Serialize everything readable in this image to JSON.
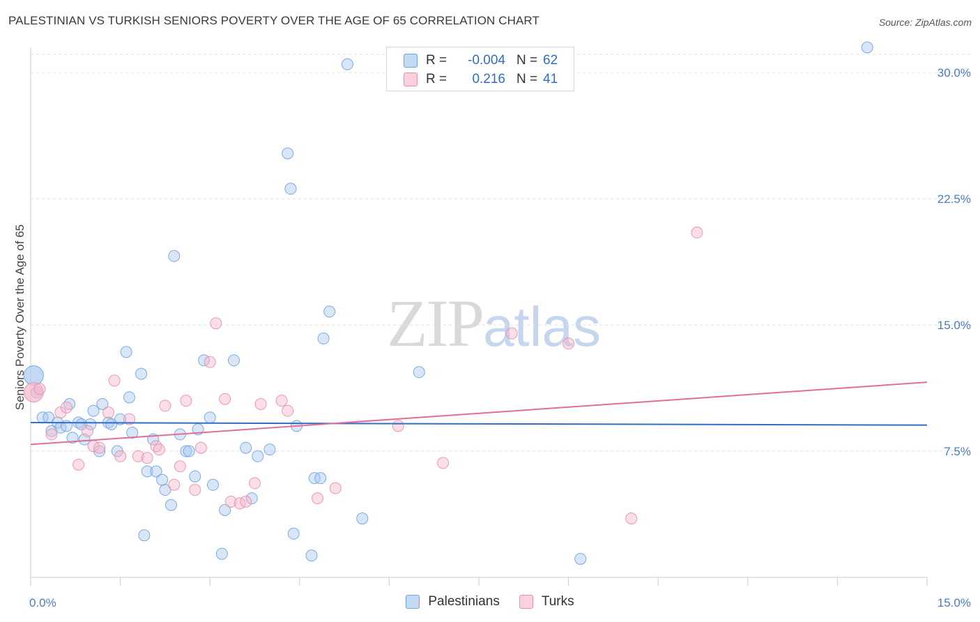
{
  "header": {
    "title": "PALESTINIAN VS TURKISH SENIORS POVERTY OVER THE AGE OF 65 CORRELATION CHART",
    "source": "Source: ZipAtlas.com"
  },
  "watermark": {
    "zip": "ZIP",
    "atlas": "atlas"
  },
  "legend_top": [
    {
      "r_label": "R =",
      "r_value": "-0.004",
      "n_label": "N =",
      "n_value": "62",
      "color": "#a9c8ef"
    },
    {
      "r_label": "R =",
      "r_value": "0.216",
      "n_label": "N =",
      "n_value": "41",
      "color": "#f7b6ca"
    }
  ],
  "legend_bottom": [
    {
      "label": "Palestinians",
      "color": "#a9c8ef"
    },
    {
      "label": "Turks",
      "color": "#f7b6ca"
    }
  ],
  "chart_data": {
    "type": "scatter",
    "title": "PALESTINIAN VS TURKISH SENIORS POVERTY OVER THE AGE OF 65 CORRELATION CHART",
    "xlabel": "",
    "ylabel": "Seniors Poverty Over the Age of 65",
    "xlim": [
      0,
      15
    ],
    "ylim": [
      0,
      31.5
    ],
    "x_tick_labels": [
      "0.0%",
      "15.0%"
    ],
    "y_ticks": [
      7.5,
      15.0,
      22.5,
      30.0
    ],
    "y_tick_labels": [
      "7.5%",
      "15.0%",
      "22.5%",
      "30.0%"
    ],
    "grid": "horizontal dashed",
    "legend_position": "top-center",
    "series": [
      {
        "name": "Palestinians",
        "color": "#6fa3e0",
        "fill": "#a9c8ef",
        "trend": {
          "x": [
            0,
            15
          ],
          "y": [
            9.2,
            9.05
          ],
          "color": "#2f6dc8"
        },
        "points": [
          [
            0.05,
            12.0
          ],
          [
            0.1,
            11.0
          ],
          [
            0.2,
            9.5
          ],
          [
            0.3,
            9.5
          ],
          [
            0.35,
            8.7
          ],
          [
            0.45,
            9.2
          ],
          [
            0.5,
            8.9
          ],
          [
            0.6,
            9.0
          ],
          [
            0.65,
            10.3
          ],
          [
            0.7,
            8.3
          ],
          [
            0.8,
            9.2
          ],
          [
            0.85,
            9.1
          ],
          [
            0.9,
            8.2
          ],
          [
            1.0,
            9.1
          ],
          [
            1.05,
            9.9
          ],
          [
            1.15,
            7.5
          ],
          [
            1.2,
            10.3
          ],
          [
            1.3,
            9.2
          ],
          [
            1.35,
            9.1
          ],
          [
            1.45,
            7.5
          ],
          [
            1.5,
            9.4
          ],
          [
            1.6,
            13.4
          ],
          [
            1.65,
            10.7
          ],
          [
            1.7,
            8.6
          ],
          [
            1.85,
            12.1
          ],
          [
            1.9,
            2.5
          ],
          [
            1.95,
            6.3
          ],
          [
            2.05,
            8.2
          ],
          [
            2.1,
            6.3
          ],
          [
            2.2,
            5.8
          ],
          [
            2.25,
            5.2
          ],
          [
            2.35,
            4.3
          ],
          [
            2.4,
            19.1
          ],
          [
            2.5,
            8.5
          ],
          [
            2.6,
            7.5
          ],
          [
            2.65,
            7.5
          ],
          [
            2.75,
            6.0
          ],
          [
            2.8,
            8.8
          ],
          [
            2.9,
            12.9
          ],
          [
            3.0,
            9.5
          ],
          [
            3.05,
            5.5
          ],
          [
            3.2,
            1.4
          ],
          [
            3.25,
            4.0
          ],
          [
            3.4,
            12.9
          ],
          [
            3.6,
            7.7
          ],
          [
            3.7,
            4.7
          ],
          [
            3.8,
            7.2
          ],
          [
            4.0,
            7.6
          ],
          [
            4.3,
            25.2
          ],
          [
            4.35,
            23.1
          ],
          [
            4.4,
            2.6
          ],
          [
            4.45,
            9.0
          ],
          [
            4.7,
            1.3
          ],
          [
            4.75,
            5.9
          ],
          [
            4.85,
            5.9
          ],
          [
            4.9,
            14.2
          ],
          [
            5.0,
            15.8
          ],
          [
            5.3,
            30.5
          ],
          [
            5.55,
            3.5
          ],
          [
            6.5,
            12.2
          ],
          [
            9.2,
            1.1
          ],
          [
            14.0,
            31.5
          ]
        ]
      },
      {
        "name": "Turks",
        "color": "#e98fab",
        "fill": "#f7b6ca",
        "trend": {
          "x": [
            0,
            15
          ],
          "y": [
            7.9,
            11.6
          ],
          "color": "#e06e99"
        },
        "points": [
          [
            0.05,
            11.0
          ],
          [
            0.15,
            11.2
          ],
          [
            0.35,
            8.5
          ],
          [
            0.5,
            9.8
          ],
          [
            0.6,
            10.1
          ],
          [
            0.8,
            6.7
          ],
          [
            0.95,
            8.7
          ],
          [
            1.05,
            7.8
          ],
          [
            1.15,
            7.7
          ],
          [
            1.3,
            9.8
          ],
          [
            1.4,
            11.7
          ],
          [
            1.5,
            7.2
          ],
          [
            1.65,
            9.4
          ],
          [
            1.8,
            7.2
          ],
          [
            1.95,
            7.1
          ],
          [
            2.1,
            7.8
          ],
          [
            2.15,
            7.6
          ],
          [
            2.25,
            10.2
          ],
          [
            2.4,
            5.5
          ],
          [
            2.5,
            6.6
          ],
          [
            2.6,
            10.5
          ],
          [
            2.75,
            5.2
          ],
          [
            2.85,
            7.7
          ],
          [
            3.0,
            12.8
          ],
          [
            3.1,
            15.1
          ],
          [
            3.25,
            10.6
          ],
          [
            3.35,
            4.5
          ],
          [
            3.5,
            4.4
          ],
          [
            3.6,
            4.5
          ],
          [
            3.75,
            5.6
          ],
          [
            3.85,
            10.3
          ],
          [
            4.2,
            10.5
          ],
          [
            4.3,
            9.9
          ],
          [
            4.8,
            4.7
          ],
          [
            5.1,
            5.3
          ],
          [
            6.15,
            9.0
          ],
          [
            6.9,
            6.8
          ],
          [
            8.05,
            14.5
          ],
          [
            9.0,
            13.9
          ],
          [
            10.05,
            3.5
          ],
          [
            11.15,
            20.5
          ]
        ]
      }
    ]
  }
}
